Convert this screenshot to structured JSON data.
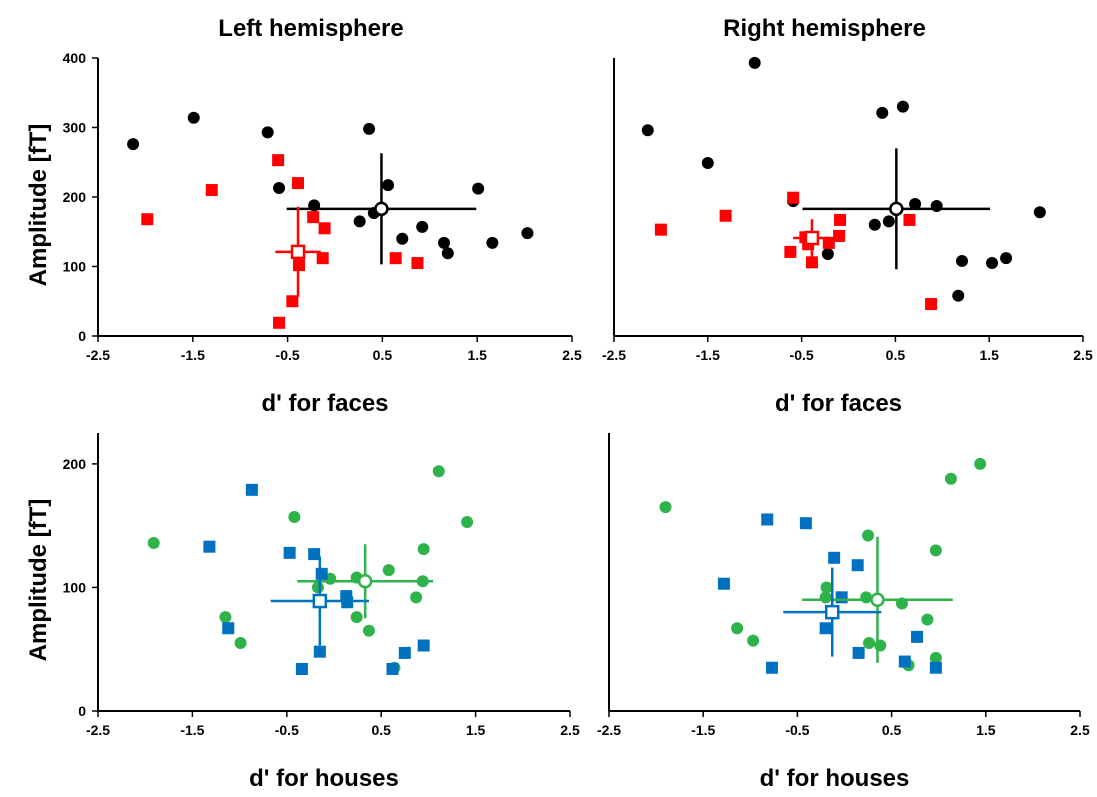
{
  "chart_data": [
    {
      "type": "scatter",
      "title": "Left hemisphere",
      "x_label": "d' for faces",
      "y_label": "Amplitude [fT]",
      "xlim": [
        -2.5,
        2.5
      ],
      "xticks": [
        -2.5,
        -1.5,
        -0.5,
        0.5,
        1.5,
        2.5
      ],
      "ylim": [
        0,
        400
      ],
      "yticks": [
        0,
        100,
        200,
        300,
        400
      ],
      "series": [
        {
          "color": "#000000",
          "marker": "circle",
          "x": [
            -2.13,
            -1.49,
            -0.71,
            -0.59,
            -0.22,
            0.36,
            0.26,
            0.41,
            0.56,
            0.71,
            0.92,
            1.15,
            1.19,
            1.51,
            1.66,
            2.03
          ],
          "y": [
            276,
            314,
            293,
            213,
            188,
            298,
            165,
            177,
            217,
            140,
            157,
            134,
            119,
            212,
            134,
            148
          ],
          "mean": {
            "x": 0.49,
            "y": 183,
            "xerr": 1.0,
            "yerr": 80
          }
        },
        {
          "color": "#ff0000",
          "marker": "square",
          "x": [
            -1.98,
            -1.3,
            -0.6,
            -0.39,
            -0.23,
            -0.11,
            -0.13,
            -0.38,
            -0.45,
            -0.59,
            0.64,
            0.87
          ],
          "y": [
            168,
            210,
            253,
            220,
            171,
            155,
            112,
            102,
            50,
            19,
            112,
            105
          ],
          "mean": {
            "x": -0.39,
            "y": 121,
            "xerr": 0.24,
            "yerr": 65
          }
        }
      ]
    },
    {
      "type": "scatter",
      "title": "Right hemisphere",
      "x_label": "d' for faces",
      "xlim": [
        -2.5,
        2.5
      ],
      "xticks": [
        -2.5,
        -1.5,
        -0.5,
        0.5,
        1.5,
        2.5
      ],
      "ylim": [
        0,
        400
      ],
      "series": [
        {
          "color": "#000000",
          "marker": "circle",
          "x": [
            -2.14,
            -1.5,
            -1.0,
            -0.59,
            -0.22,
            0.28,
            0.43,
            0.36,
            0.58,
            0.71,
            0.94,
            1.21,
            1.17,
            1.53,
            1.68,
            2.04
          ],
          "y": [
            296,
            249,
            393,
            194,
            118,
            160,
            165,
            321,
            330,
            190,
            187,
            108,
            58,
            105,
            112,
            178
          ],
          "mean": {
            "x": 0.51,
            "y": 183,
            "xerr": 1.0,
            "yerr": 87
          }
        },
        {
          "color": "#ff0000",
          "marker": "square",
          "x": [
            -2.0,
            -1.31,
            -0.59,
            -0.62,
            -0.43,
            -0.21,
            -0.1,
            -0.09,
            -0.39,
            0.65,
            0.88,
            -0.46
          ],
          "y": [
            153,
            173,
            199,
            121,
            132,
            134,
            144,
            167,
            106,
            167,
            46,
            142
          ],
          "mean": {
            "x": -0.39,
            "y": 141,
            "xerr": 0.2,
            "yerr": 27
          }
        }
      ]
    },
    {
      "type": "scatter",
      "x_label": "d' for houses",
      "y_label": "Amplitude [fT]",
      "xlim": [
        -2.5,
        2.5
      ],
      "xticks": [
        -2.5,
        -1.5,
        -0.5,
        0.5,
        1.5,
        2.5
      ],
      "ylim": [
        0,
        225
      ],
      "yticks": [
        0,
        100,
        200
      ],
      "series": [
        {
          "color": "#2eb34a",
          "marker": "circle",
          "x": [
            -1.91,
            -1.15,
            -0.99,
            -0.42,
            -0.17,
            -0.04,
            0.24,
            0.24,
            0.37,
            0.58,
            0.87,
            0.94,
            0.95,
            1.11,
            1.41,
            0.64
          ],
          "y": [
            136,
            76,
            55,
            157,
            100,
            107,
            108,
            76,
            65,
            114,
            92,
            105,
            131,
            194,
            153,
            35
          ],
          "mean": {
            "x": 0.33,
            "y": 105,
            "xerr": 0.72,
            "yerr": 30
          }
        },
        {
          "color": "#0070c0",
          "marker": "square",
          "x": [
            -1.32,
            -0.87,
            -1.12,
            -0.47,
            -0.21,
            -0.13,
            0.13,
            0.14,
            -0.15,
            -0.34,
            0.75,
            0.95,
            0.62
          ],
          "y": [
            133,
            179,
            67,
            128,
            127,
            111,
            93,
            88,
            48,
            34,
            47,
            53,
            34
          ],
          "mean": {
            "x": -0.15,
            "y": 89,
            "xerr": 0.52,
            "yerr": 36
          }
        }
      ]
    },
    {
      "type": "scatter",
      "x_label": "d' for houses",
      "xlim": [
        -2.5,
        2.5
      ],
      "xticks": [
        -2.5,
        -1.5,
        -0.5,
        0.5,
        1.5,
        2.5
      ],
      "ylim": [
        0,
        225
      ],
      "series": [
        {
          "color": "#2eb34a",
          "marker": "circle",
          "x": [
            -1.9,
            -1.14,
            -0.97,
            -0.2,
            -0.19,
            0.25,
            0.23,
            0.26,
            0.38,
            0.61,
            0.88,
            0.97,
            0.97,
            0.68,
            1.13,
            1.44
          ],
          "y": [
            165,
            67,
            57,
            92,
            100,
            142,
            92,
            55,
            53,
            87,
            74,
            130,
            43,
            37,
            188,
            200
          ],
          "mean": {
            "x": 0.35,
            "y": 90,
            "xerr": 0.8,
            "yerr": 51
          }
        },
        {
          "color": "#0070c0",
          "marker": "square",
          "x": [
            -1.28,
            -0.77,
            -0.82,
            -0.41,
            -0.03,
            -0.11,
            -0.2,
            0.14,
            0.15,
            0.77,
            0.64,
            0.97
          ],
          "y": [
            103,
            35,
            155,
            152,
            92,
            124,
            67,
            118,
            47,
            60,
            40,
            35
          ],
          "mean": {
            "x": -0.13,
            "y": 80,
            "xerr": 0.52,
            "yerr": 36
          }
        }
      ]
    }
  ]
}
